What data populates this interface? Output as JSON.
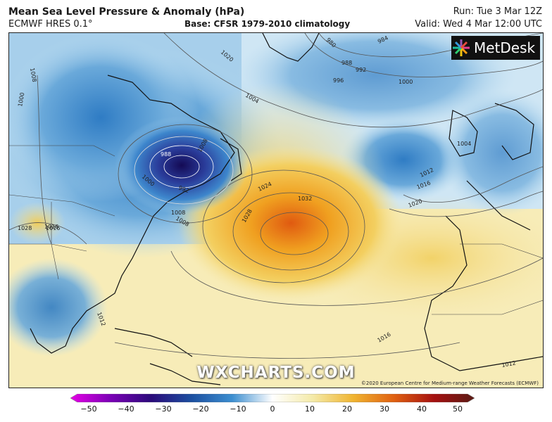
{
  "header": {
    "title": "Mean Sea Level Pressure & Anomaly (hPa)",
    "model": "ECMWF HRES 0.1°",
    "base": "Base: CFSR 1979-2010 climatology",
    "run": "Run: Tue 3 Mar 12Z",
    "valid": "Valid: Wed 4 Mar 12:00 UTC"
  },
  "logo": {
    "text": "MetDesk",
    "icon": "metdesk-starburst-icon"
  },
  "watermark": "WXCHARTS.COM",
  "credit": "©2020 European Centre for Medium-range Weather Forecasts (ECMWF)",
  "map": {
    "features": [
      {
        "label": "988",
        "kind": "low-center"
      },
      {
        "label": "1032",
        "kind": "high-center"
      }
    ],
    "isobar_labels": [
      "1000",
      "1004",
      "1008",
      "1012",
      "1016",
      "1020",
      "1024",
      "1028",
      "1032",
      "980",
      "984",
      "988",
      "992",
      "996",
      "1000",
      "1004",
      "1008",
      "1012",
      "1016",
      "1020",
      "992",
      "1008",
      "1016",
      "1012",
      "1016",
      "1004",
      "1012",
      "1000",
      "1008",
      "1012"
    ]
  },
  "colorbar": {
    "ticks": [
      "−50",
      "−40",
      "−30",
      "−20",
      "−10",
      "0",
      "10",
      "20",
      "30",
      "40",
      "50"
    ],
    "colors": [
      "#e600e6",
      "#7a00b5",
      "#2a0a7a",
      "#1b4fa0",
      "#3c8ed0",
      "#bfe1f3",
      "#f4eaa8",
      "#f0b430",
      "#e06010",
      "#a51010",
      "#5a1a14"
    ]
  }
}
